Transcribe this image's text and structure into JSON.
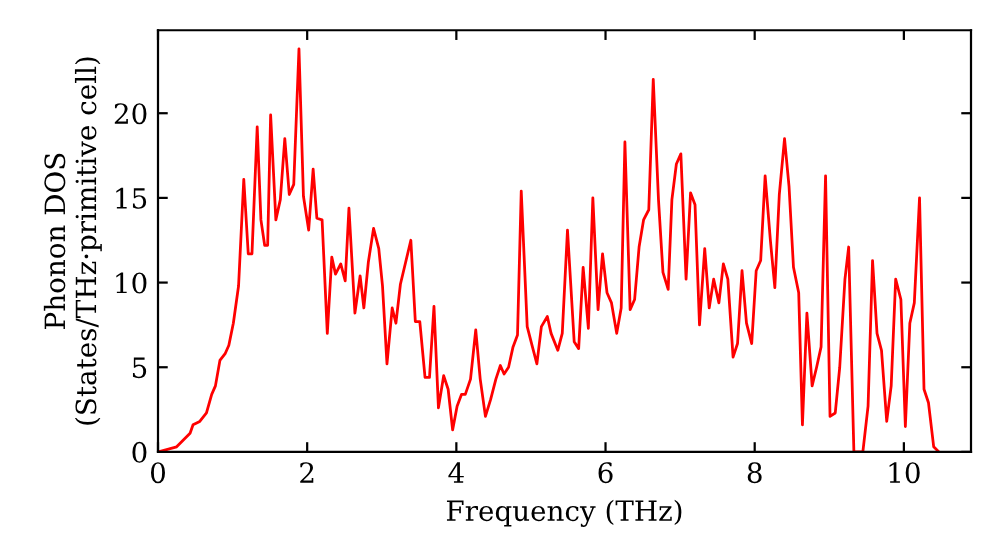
{
  "chart_data": {
    "type": "line",
    "xlabel": "Frequency (THz)",
    "ylabel": "Phonon DOS\n(States/THz·primitive cell)",
    "xlim": [
      0,
      10.9
    ],
    "ylim": [
      0,
      24.9
    ],
    "xticks": [
      0,
      2,
      4,
      6,
      8,
      10
    ],
    "yticks": [
      0,
      5,
      10,
      15,
      20
    ],
    "grid": false,
    "marker": "none",
    "line_style": "solid",
    "series": [
      {
        "color": "#ff0000",
        "x": [
          0,
          0.25,
          0.43,
          0.47,
          0.56,
          0.65,
          0.72,
          0.77,
          0.83,
          0.9,
          0.95,
          1.01,
          1.08,
          1.15,
          1.21,
          1.26,
          1.33,
          1.38,
          1.43,
          1.47,
          1.51,
          1.58,
          1.64,
          1.7,
          1.76,
          1.82,
          1.89,
          1.95,
          2.02,
          2.08,
          2.13,
          2.2,
          2.27,
          2.33,
          2.38,
          2.45,
          2.51,
          2.56,
          2.64,
          2.71,
          2.76,
          2.82,
          2.89,
          2.96,
          3.01,
          3.07,
          3.14,
          3.19,
          3.25,
          3.32,
          3.39,
          3.45,
          3.51,
          3.58,
          3.64,
          3.7,
          3.76,
          3.83,
          3.89,
          3.95,
          4.01,
          4.07,
          4.12,
          4.19,
          4.26,
          4.32,
          4.39,
          4.46,
          4.53,
          4.59,
          4.64,
          4.7,
          4.76,
          4.82,
          4.87,
          4.95,
          5.02,
          5.08,
          5.14,
          5.22,
          5.27,
          5.36,
          5.42,
          5.49,
          5.58,
          5.64,
          5.7,
          5.77,
          5.83,
          5.9,
          5.96,
          6.02,
          6.08,
          6.15,
          6.21,
          6.26,
          6.33,
          6.39,
          6.45,
          6.51,
          6.58,
          6.64,
          6.71,
          6.77,
          6.84,
          6.89,
          6.95,
          7.01,
          7.08,
          7.14,
          7.2,
          7.26,
          7.33,
          7.39,
          7.45,
          7.52,
          7.58,
          7.64,
          7.71,
          7.77,
          7.83,
          7.89,
          7.96,
          8.02,
          8.08,
          8.14,
          8.21,
          8.27,
          8.33,
          8.4,
          8.46,
          8.52,
          8.59,
          8.64,
          8.7,
          8.77,
          8.83,
          8.89,
          8.95,
          9.01,
          9.08,
          9.14,
          9.21,
          9.26,
          9.33,
          9.45,
          9.52,
          9.58,
          9.64,
          9.7,
          9.77,
          9.83,
          9.89,
          9.96,
          10.02,
          10.08,
          10.14,
          10.21,
          10.27,
          10.33,
          10.4,
          10.47
        ],
        "values": [
          0,
          0.3,
          1.1,
          1.6,
          1.8,
          2.3,
          3.4,
          3.9,
          5.4,
          5.8,
          6.3,
          7.6,
          9.8,
          16.1,
          11.7,
          11.7,
          19.2,
          13.7,
          12.2,
          12.2,
          19.9,
          13.7,
          14.9,
          18.5,
          15.2,
          15.8,
          23.8,
          15.1,
          13.1,
          16.7,
          13.8,
          13.7,
          7.0,
          11.5,
          10.5,
          11.1,
          10.1,
          14.4,
          8.2,
          10.4,
          8.5,
          11.2,
          13.2,
          12.0,
          9.8,
          5.2,
          8.5,
          7.6,
          9.9,
          11.2,
          12.5,
          7.7,
          7.7,
          4.4,
          4.4,
          8.6,
          2.6,
          4.5,
          3.7,
          1.3,
          2.7,
          3.4,
          3.4,
          4.3,
          7.2,
          4.3,
          2.1,
          3.1,
          4.3,
          5.1,
          4.6,
          5.0,
          6.2,
          6.9,
          15.4,
          7.4,
          6.2,
          5.2,
          7.4,
          8.0,
          7.0,
          6.0,
          7.0,
          13.1,
          6.5,
          6.1,
          10.9,
          7.3,
          15.0,
          8.4,
          11.7,
          9.4,
          8.8,
          7.0,
          8.5,
          18.3,
          8.4,
          9.0,
          12.1,
          13.7,
          14.3,
          22.0,
          14.9,
          10.6,
          9.6,
          14.9,
          17.0,
          17.6,
          10.2,
          15.3,
          14.6,
          7.5,
          12.0,
          8.5,
          10.2,
          8.8,
          11.1,
          10.2,
          5.6,
          6.4,
          10.7,
          7.6,
          6.4,
          10.7,
          11.3,
          16.3,
          12.5,
          9.7,
          15.2,
          18.5,
          15.7,
          10.9,
          9.4,
          1.6,
          8.2,
          3.9,
          5.0,
          6.2,
          16.3,
          2.1,
          2.3,
          5.0,
          10.2,
          12.1,
          0,
          0,
          2.7,
          11.3,
          7.0,
          6.0,
          1.8,
          3.9,
          10.2,
          9.0,
          1.5,
          7.6,
          8.8,
          15.0,
          3.7,
          2.9,
          0.3,
          0
        ]
      }
    ]
  }
}
